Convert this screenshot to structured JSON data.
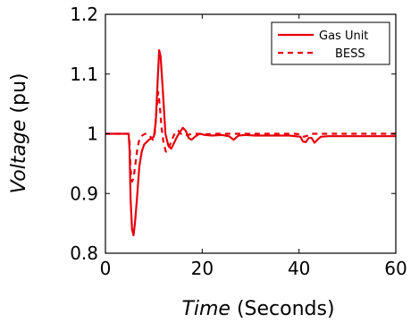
{
  "chart_data": {
    "type": "line",
    "xlabel_italic": "Time",
    "xlabel_rest": " (Seconds)",
    "ylabel_italic": "Voltage",
    "ylabel_rest": " (pu)",
    "xlim": [
      0,
      60
    ],
    "ylim": [
      0.8,
      1.2
    ],
    "xticks": [
      0,
      20,
      40,
      60
    ],
    "yticks": [
      0.8,
      0.9,
      1,
      1.1,
      1.2
    ],
    "xtick_labels": [
      "0",
      "20",
      "40",
      "60"
    ],
    "ytick_labels": [
      "0.8",
      "0.9",
      "1",
      "1.1",
      "1.2"
    ],
    "grid": false,
    "legend_position": "top-right",
    "color": "#e8000b",
    "series": [
      {
        "name": "Gas Unit",
        "style": "solid",
        "x": [
          0,
          4.8,
          5.0,
          5.2,
          5.5,
          5.8,
          6.1,
          6.5,
          7.0,
          7.5,
          8.0,
          9.0,
          10.0,
          10.4,
          10.8,
          11.1,
          11.4,
          11.8,
          12.4,
          13.0,
          13.6,
          14.2,
          14.8,
          15.4,
          16.0,
          16.6,
          17.2,
          17.8,
          18.5,
          19.5,
          20.5,
          22,
          24,
          25.5,
          26.5,
          27.5,
          29,
          31,
          34,
          38,
          40.3,
          40.8,
          41.4,
          42,
          42.6,
          43.2,
          43.8,
          44.5,
          46,
          50,
          55,
          60
        ],
        "y": [
          1.0,
          1.0,
          0.97,
          0.89,
          0.84,
          0.83,
          0.85,
          0.89,
          0.945,
          0.97,
          0.982,
          0.99,
          0.995,
          1.02,
          1.09,
          1.14,
          1.13,
          1.08,
          1.0,
          0.98,
          0.975,
          0.985,
          0.995,
          1.003,
          1.01,
          1.005,
          0.993,
          0.99,
          0.995,
          1.0,
          0.998,
          0.997,
          0.998,
          0.996,
          0.99,
          0.997,
          0.998,
          0.997,
          0.997,
          0.997,
          0.995,
          0.987,
          0.986,
          0.993,
          0.993,
          0.985,
          0.99,
          0.995,
          0.996,
          0.996,
          0.996,
          0.996
        ]
      },
      {
        "name": "BESS",
        "style": "dashed",
        "x": [
          0,
          4.8,
          5.0,
          5.2,
          5.5,
          5.8,
          6.2,
          6.6,
          7.0,
          7.6,
          8.2,
          9.0,
          9.8,
          10.2,
          10.6,
          10.9,
          11.2,
          11.6,
          12.0,
          12.5,
          13.0,
          13.5,
          14.0,
          14.5,
          15.0,
          15.6,
          16.2,
          17.0,
          18.0,
          19.0,
          20.5,
          23,
          26,
          30,
          35,
          39,
          40.3,
          41,
          41.8,
          42.5,
          43.5,
          45,
          50,
          55,
          60
        ],
        "y": [
          1.0,
          1.0,
          0.985,
          0.94,
          0.92,
          0.925,
          0.95,
          0.975,
          0.99,
          0.997,
          1.0,
          0.998,
          0.99,
          1.0,
          1.045,
          1.07,
          1.05,
          1.01,
          0.985,
          0.97,
          0.975,
          0.985,
          0.995,
          1.003,
          1.005,
          1.0,
          0.997,
          0.998,
          1.0,
          1.0,
          0.999,
          1.0,
          1.0,
          1.0,
          1.0,
          1.0,
          0.999,
          0.995,
          0.997,
          1.0,
          1.0,
          1.0,
          1.0,
          1.0,
          1.0
        ]
      }
    ]
  }
}
